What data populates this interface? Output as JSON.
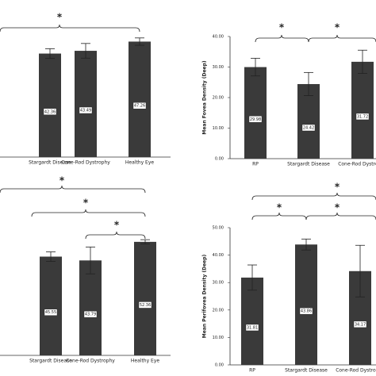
{
  "chart_data": [
    {
      "type": "bar",
      "categories": [
        "Stargardt Disease",
        "Cone-Rod Dystrophy",
        "Healthy Eye"
      ],
      "values": [
        42.36,
        43.49,
        47.26
      ],
      "errors": [
        2,
        3,
        1.5
      ],
      "ylim": [
        0,
        50
      ],
      "color": "#3a3a3a",
      "annotations": [
        "*"
      ]
    },
    {
      "type": "bar",
      "y_label": "Mean Fovea Density (Deep)",
      "categories": [
        "RP",
        "Stargardt Disease",
        "Cone-Rod Dystrophy"
      ],
      "values": [
        29.98,
        24.42,
        31.72
      ],
      "errors": [
        2.9,
        3.8,
        3.8
      ],
      "ylim": [
        0,
        40
      ],
      "yticks": [
        {
          "value": 0,
          "label": "0.00"
        },
        {
          "value": 10,
          "label": "10.00"
        },
        {
          "value": 20,
          "label": "20.00"
        },
        {
          "value": 30,
          "label": "30.00"
        },
        {
          "value": 40,
          "label": "40.00"
        }
      ],
      "color": "#3a3a3a",
      "annotations": [
        "*",
        "*"
      ]
    },
    {
      "type": "bar",
      "categories": [
        "Stargardt Disease",
        "Cone-Rod Dystrophy",
        "Healthy Eye"
      ],
      "values": [
        45.55,
        43.79,
        52.36
      ],
      "errors": [
        2.2,
        6.2,
        1
      ],
      "ylim": [
        0,
        60
      ],
      "color": "#3a3a3a",
      "annotations": [
        "*",
        "*",
        "*"
      ]
    },
    {
      "type": "bar",
      "y_label": "Mean Perifovea Density (Deep)",
      "categories": [
        "RP",
        "Stargardt Disease",
        "Cone-Rod Dystrophy"
      ],
      "values": [
        31.81,
        43.86,
        34.17
      ],
      "errors": [
        4.6,
        2,
        9.4
      ],
      "ylim": [
        0,
        50
      ],
      "yticks": [
        {
          "value": 0,
          "label": "0.00"
        },
        {
          "value": 10,
          "label": "10.00"
        },
        {
          "value": 20,
          "label": "20.00"
        },
        {
          "value": 30,
          "label": "30.00"
        },
        {
          "value": 40,
          "label": "40.00"
        },
        {
          "value": 50,
          "label": "50.00"
        }
      ],
      "color": "#3a3a3a",
      "annotations": [
        "*",
        "*",
        "*"
      ]
    }
  ]
}
